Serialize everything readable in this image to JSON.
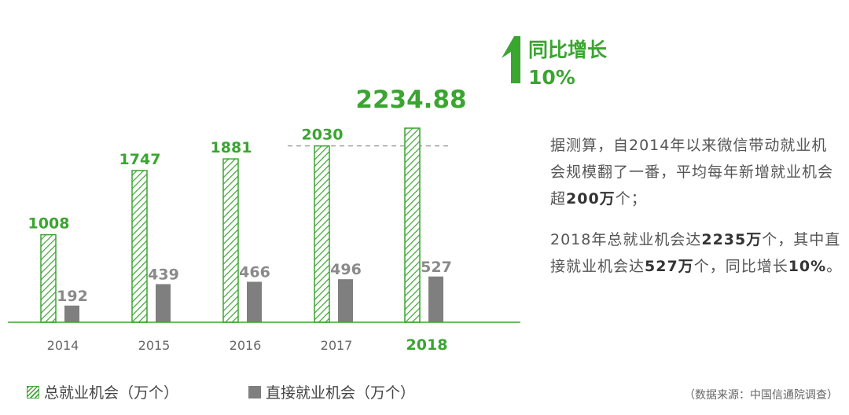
{
  "chart_data": {
    "type": "bar",
    "categories": [
      "2014",
      "2015",
      "2016",
      "2017",
      "2018"
    ],
    "series": [
      {
        "name": "总就业机会（万个）",
        "values": [
          1008,
          1747,
          1881,
          2030,
          2234.88
        ],
        "labels": [
          "1008",
          "1747",
          "1881",
          "2030",
          "2234.88"
        ],
        "color": "#3aa530",
        "pattern": "hatched"
      },
      {
        "name": "直接就业机会（万个）",
        "values": [
          192,
          439,
          466,
          496,
          527
        ],
        "labels": [
          "192",
          "439",
          "466",
          "496",
          "527"
        ],
        "color": "#7f7f7f"
      }
    ],
    "highlight_category": "2018",
    "reference_line": {
      "value": 2030,
      "style": "dashed"
    },
    "xlabel": "",
    "ylabel": "",
    "ylim": [
      0,
      2300
    ],
    "grid": false,
    "legend_position": "bottom-left"
  },
  "growth": {
    "label": "同比增长",
    "value": "10%",
    "icon": "up-arrow-icon",
    "color": "#3aa530"
  },
  "description": {
    "p1_a": "据测算，自2014年以来微信带动就业机会规模翻了一番，平均每年新增就业机会超",
    "p1_b": "200万",
    "p1_c": "个；",
    "p2_a": "2018年总就业机会达",
    "p2_b": "2235万",
    "p2_c": "个，其中直接就业机会达",
    "p2_d": "527万",
    "p2_e": "个，同比增长",
    "p2_f": "10%",
    "p2_g": "。"
  },
  "legend": {
    "total": "总就业机会（万个）",
    "direct": "直接就业机会（万个）"
  },
  "source": "（数据来源：中国信通院调查）",
  "colors": {
    "green": "#3aa530",
    "gray": "#7f7f7f",
    "axis_label": "#666666"
  }
}
